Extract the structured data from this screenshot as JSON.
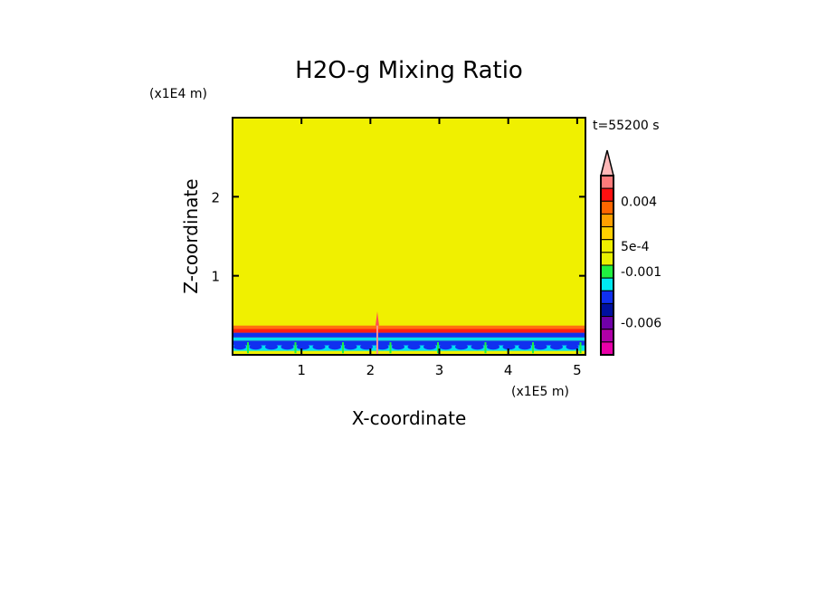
{
  "chart_data": {
    "type": "heatmap",
    "title": "H2O-g Mixing Ratio",
    "xlabel": "X-coordinate",
    "ylabel": "Z-coordinate",
    "x_unit": "(x1E5 m)",
    "y_unit": "(x1E4 m)",
    "time_label": "t=55200 s",
    "xlim": [
      0,
      5.12
    ],
    "ylim": [
      0,
      3.0
    ],
    "xticks": [
      "1",
      "2",
      "3",
      "4",
      "5"
    ],
    "xtick_values": [
      1,
      2,
      3,
      4,
      5
    ],
    "yticks": [
      "1",
      "2"
    ],
    "ytick_values": [
      1,
      2
    ],
    "background_color": "#f0f000",
    "bands": [
      {
        "z0": 0.0,
        "z1": 0.05,
        "color": "#f0f000"
      },
      {
        "z0": 0.05,
        "z1": 0.12,
        "color": "#00e0f0"
      },
      {
        "z0": 0.12,
        "z1": 0.18,
        "color": "#1030f0"
      },
      {
        "z0": 0.18,
        "z1": 0.22,
        "color": "#00e0f0"
      },
      {
        "z0": 0.22,
        "z1": 0.28,
        "color": "#1030f0"
      },
      {
        "z0": 0.28,
        "z1": 0.33,
        "color": "#ff2010"
      },
      {
        "z0": 0.33,
        "z1": 0.37,
        "color": "#ff7010"
      }
    ],
    "spike_x": 2.1,
    "colorbar": {
      "colors": [
        "#ff7a7a",
        "#ff1010",
        "#ff6600",
        "#ffa000",
        "#ffd000",
        "#f0f000",
        "#e8f000",
        "#20f040",
        "#00e8f0",
        "#1030f0",
        "#0010a0",
        "#7000a8",
        "#b000a8",
        "#e800a8"
      ],
      "extend_color": "#ffb8b8",
      "labels": [
        "0.004",
        "5e-4",
        "-0.001",
        "-0.006"
      ],
      "label_positions": [
        2,
        5.5,
        7.5,
        11.5
      ]
    }
  }
}
